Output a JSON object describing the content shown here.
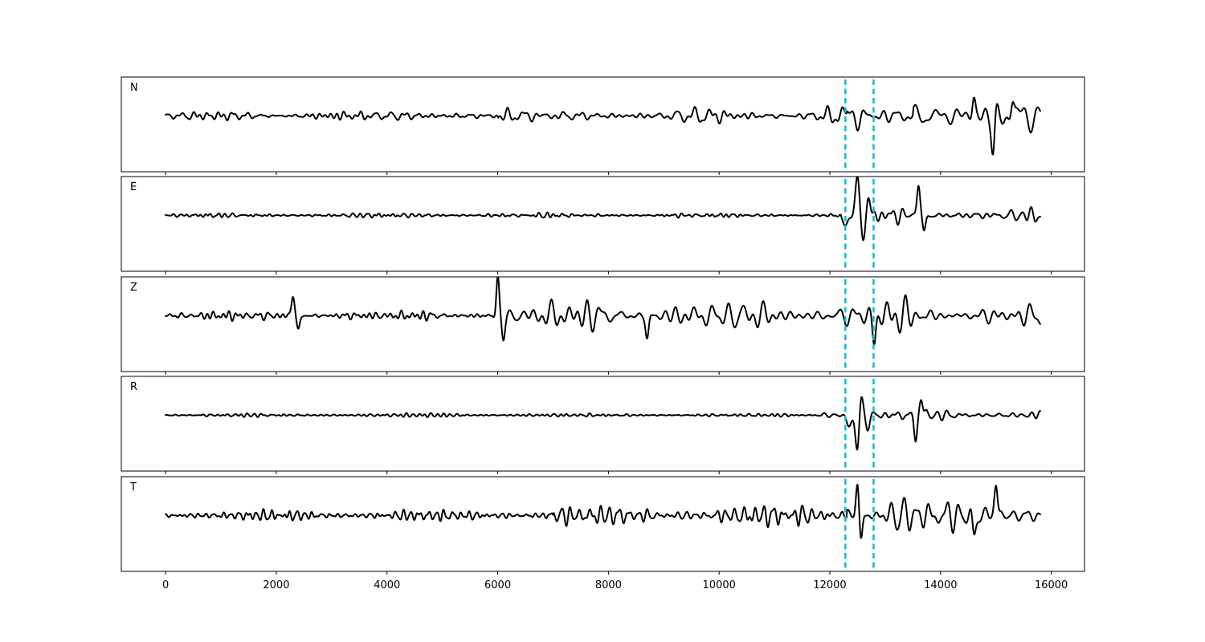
{
  "chart_data": {
    "type": "line",
    "title": "",
    "xlabel": "",
    "ylabel": "",
    "xlim": [
      -800,
      16600
    ],
    "x_ticks": [
      0,
      2000,
      4000,
      6000,
      8000,
      10000,
      12000,
      14000,
      16000
    ],
    "x_tick_labels": [
      "0",
      "2000",
      "4000",
      "6000",
      "8000",
      "10000",
      "12000",
      "14000",
      "16000"
    ],
    "grid": false,
    "sample_count": 15800,
    "marker_lines": {
      "color": "#17becf",
      "style": "dashed",
      "x": [
        12280,
        12790
      ]
    },
    "trace_color": "#000000",
    "panels": [
      {
        "label": "N",
        "ylim": [
          -1,
          1
        ],
        "segments": [
          {
            "from": 0,
            "to": 2000,
            "amp": 0.12,
            "freq": 1.0
          },
          {
            "from": 2000,
            "to": 6000,
            "amp": 0.14,
            "freq": 1.0
          },
          {
            "from": 6000,
            "to": 10500,
            "amp": 0.18,
            "freq": 0.85
          },
          {
            "from": 10500,
            "to": 12300,
            "amp": 0.22,
            "freq": 0.85
          },
          {
            "from": 12300,
            "to": 13500,
            "amp": 0.32,
            "freq": 0.75
          },
          {
            "from": 13500,
            "to": 15800,
            "amp": 0.5,
            "freq": 0.6
          }
        ],
        "events": [
          {
            "x": 12500,
            "amp": -0.1,
            "width": 60
          },
          {
            "x": 14600,
            "amp": 0.5,
            "width": 40
          },
          {
            "x": 14950,
            "amp": -0.95,
            "width": 40
          },
          {
            "x": 15300,
            "amp": 0.45,
            "width": 40
          }
        ]
      },
      {
        "label": "E",
        "ylim": [
          -1,
          1
        ],
        "segments": [
          {
            "from": 0,
            "to": 12200,
            "amp": 0.06,
            "freq": 1.0
          },
          {
            "from": 12200,
            "to": 15800,
            "amp": 0.2,
            "freq": 0.7
          }
        ],
        "events": [
          {
            "x": 12300,
            "amp": -0.2,
            "width": 70
          },
          {
            "x": 12500,
            "amp": 1.0,
            "width": 50
          },
          {
            "x": 12600,
            "amp": -0.55,
            "width": 50
          },
          {
            "x": 12700,
            "amp": 0.35,
            "width": 50
          },
          {
            "x": 13600,
            "amp": 0.85,
            "width": 40
          },
          {
            "x": 13700,
            "amp": -0.45,
            "width": 40
          }
        ]
      },
      {
        "label": "Z",
        "ylim": [
          -1,
          1
        ],
        "segments": [
          {
            "from": 0,
            "to": 5900,
            "amp": 0.12,
            "freq": 0.9
          },
          {
            "from": 5900,
            "to": 15800,
            "amp": 0.38,
            "freq": 0.55
          }
        ],
        "events": [
          {
            "x": 2300,
            "amp": 0.5,
            "width": 40
          },
          {
            "x": 2400,
            "amp": -0.35,
            "width": 40
          },
          {
            "x": 6000,
            "amp": 1.0,
            "width": 35
          },
          {
            "x": 6100,
            "amp": -0.55,
            "width": 40
          },
          {
            "x": 8700,
            "amp": -0.6,
            "width": 40
          },
          {
            "x": 12800,
            "amp": -0.65,
            "width": 40
          }
        ]
      },
      {
        "label": "R",
        "ylim": [
          -1,
          1
        ],
        "segments": [
          {
            "from": 0,
            "to": 11800,
            "amp": 0.05,
            "freq": 1.0
          },
          {
            "from": 11800,
            "to": 15800,
            "amp": 0.18,
            "freq": 0.7
          }
        ],
        "events": [
          {
            "x": 12350,
            "amp": -0.25,
            "width": 70
          },
          {
            "x": 12500,
            "amp": -1.0,
            "width": 50
          },
          {
            "x": 12560,
            "amp": 0.6,
            "width": 50
          },
          {
            "x": 12680,
            "amp": -0.3,
            "width": 50
          },
          {
            "x": 13550,
            "amp": -0.65,
            "width": 40
          },
          {
            "x": 13650,
            "amp": 0.5,
            "width": 40
          }
        ]
      },
      {
        "label": "T",
        "ylim": [
          -1,
          1
        ],
        "segments": [
          {
            "from": 0,
            "to": 7000,
            "amp": 0.13,
            "freq": 1.0
          },
          {
            "from": 7000,
            "to": 10500,
            "amp": 0.22,
            "freq": 0.85
          },
          {
            "from": 10500,
            "to": 12300,
            "amp": 0.26,
            "freq": 0.85
          },
          {
            "from": 12300,
            "to": 15800,
            "amp": 0.38,
            "freq": 0.6
          }
        ],
        "events": [
          {
            "x": 12500,
            "amp": 0.95,
            "width": 40
          },
          {
            "x": 12560,
            "amp": -0.75,
            "width": 40
          },
          {
            "x": 14600,
            "amp": -0.55,
            "width": 40
          },
          {
            "x": 15000,
            "amp": 0.85,
            "width": 40
          }
        ]
      }
    ]
  }
}
